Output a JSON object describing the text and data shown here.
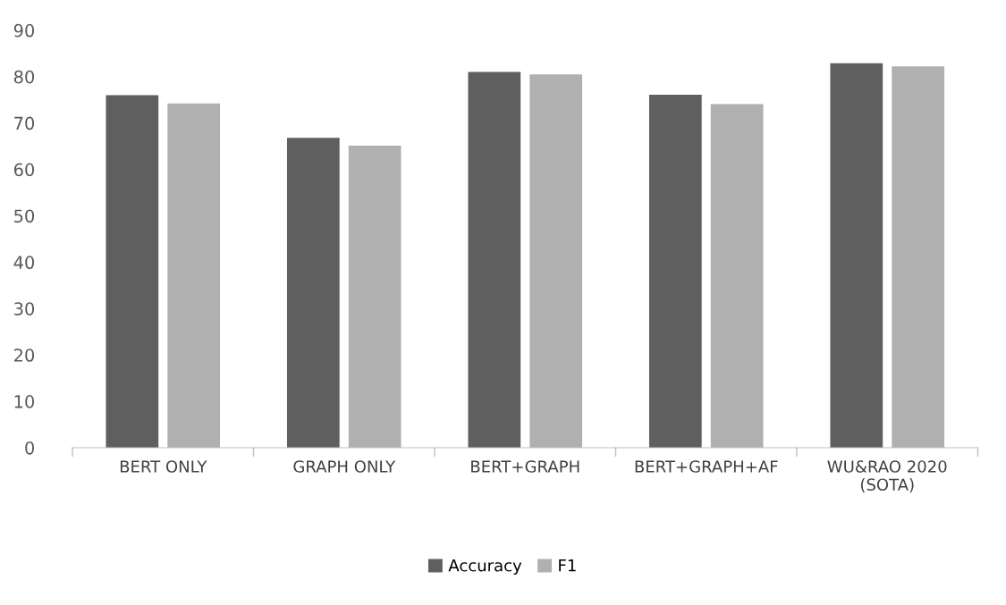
{
  "chart_data": {
    "type": "bar",
    "categories": [
      "BERT ONLY",
      "GRAPH ONLY",
      "BERT+GRAPH",
      "BERT+GRAPH+AF",
      "WU&RAO 2020\n(SOTA)"
    ],
    "series": [
      {
        "name": "Accuracy",
        "color": "#5f5f5f",
        "values": [
          76.0,
          66.8,
          81.0,
          76.1,
          82.9
        ]
      },
      {
        "name": "F1",
        "color": "#b0b0b0",
        "values": [
          74.2,
          65.1,
          80.5,
          74.1,
          82.2
        ]
      }
    ],
    "ylim": [
      0,
      90
    ],
    "yticks": [
      0,
      10,
      20,
      30,
      40,
      50,
      60,
      70,
      80,
      90
    ],
    "grid": false,
    "legend": "bottom"
  }
}
